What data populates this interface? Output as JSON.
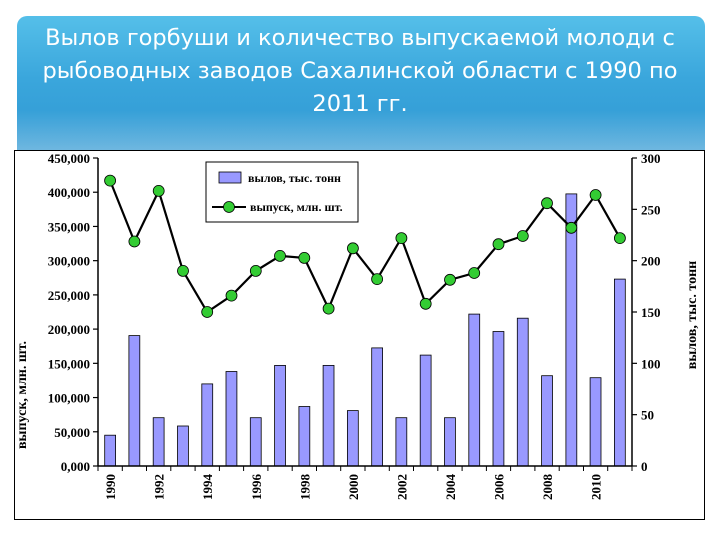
{
  "slide": {
    "title": "Вылов горбуши и количество выпускаемой молоди с рыбоводных заводов Сахалинской области с 1990 по 2011 гг."
  },
  "colors": {
    "banner": "#3aa6dc",
    "bar_fill": "#9999ff",
    "line_stroke": "#000000",
    "marker_fill": "#33cc33"
  },
  "chart_data": {
    "type": "bar",
    "title": "",
    "x": [
      1990,
      1991,
      1992,
      1993,
      1994,
      1995,
      1996,
      1997,
      1998,
      1999,
      2000,
      2001,
      2002,
      2003,
      2004,
      2005,
      2006,
      2007,
      2008,
      2009,
      2010,
      2011
    ],
    "x_tick_labels": [
      "1990",
      "1992",
      "1994",
      "1996",
      "1998",
      "2000",
      "2002",
      "2004",
      "2006",
      "2008",
      "2010"
    ],
    "ylabel_left": "выпуск, млн. шт.",
    "ylabel_right": "вылов, тыс. тонн",
    "ylim_left": [
      0,
      450000
    ],
    "ylim_right": [
      0,
      300
    ],
    "y_tick_labels_left": [
      "0,000",
      "50,000",
      "100,000",
      "150,000",
      "200,000",
      "250,000",
      "300,000",
      "350,000",
      "400,000",
      "450,000"
    ],
    "y_tick_labels_right": [
      "0",
      "50",
      "100",
      "150",
      "200",
      "250",
      "300"
    ],
    "legend_position": "top-center",
    "grid": false,
    "series": [
      {
        "name": "вылов, тыс. тонн",
        "type": "bar",
        "axis": "right",
        "values": [
          30,
          127,
          47,
          39,
          80,
          92,
          47,
          98,
          58,
          98,
          54,
          115,
          47,
          108,
          47,
          148,
          131,
          144,
          88,
          265,
          86,
          182
        ]
      },
      {
        "name": "выпуск, млн. шт.",
        "type": "line",
        "axis": "left",
        "values": [
          417000,
          328000,
          402000,
          285000,
          225000,
          249000,
          285000,
          307000,
          304000,
          230000,
          318000,
          273000,
          333000,
          237000,
          272000,
          282000,
          324000,
          336000,
          384000,
          348000,
          396000,
          333000
        ]
      }
    ]
  }
}
